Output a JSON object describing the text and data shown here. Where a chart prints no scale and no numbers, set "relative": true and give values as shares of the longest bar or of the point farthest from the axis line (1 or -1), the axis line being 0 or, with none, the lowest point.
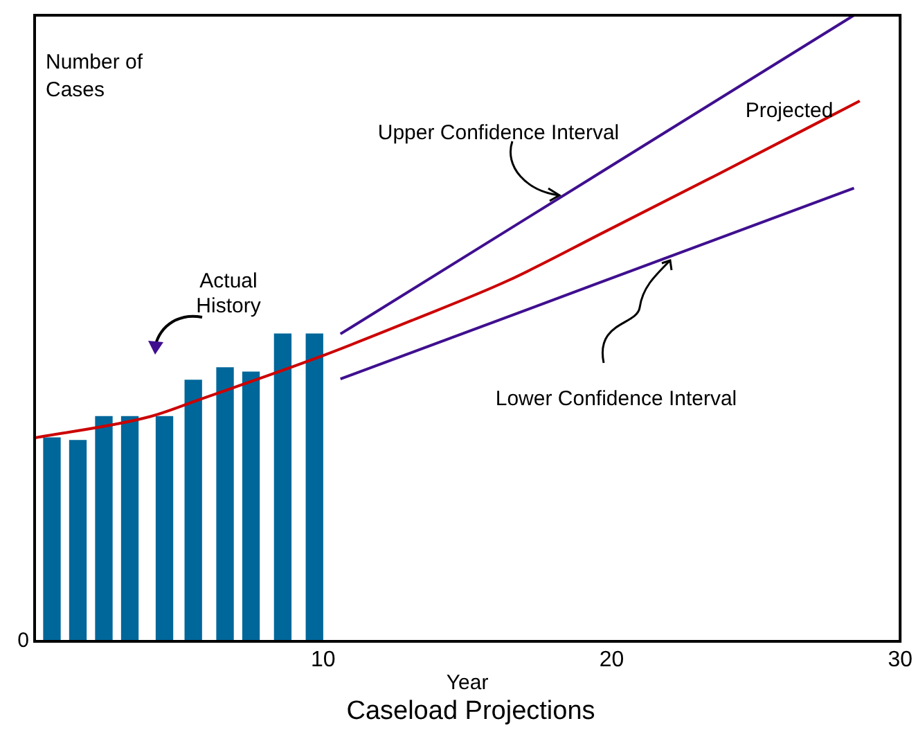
{
  "chart_data": {
    "type": "bar",
    "title": "Caseload Projections",
    "xlabel": "Year",
    "ylabel": "Number of Cases",
    "relative": true,
    "xlim": [
      0,
      30
    ],
    "xticks": [
      10,
      20,
      30
    ],
    "grid": false,
    "legend": false,
    "annotations": [
      "0"
    ],
    "series": [
      {
        "name": "Actual History",
        "color": "#00679a",
        "x": [
          0.6,
          1.5,
          2.4,
          3.3,
          4.5,
          5.5,
          6.6,
          7.5,
          8.6,
          9.7
        ],
        "values": [
          0.325,
          0.321,
          0.359,
          0.359,
          0.359,
          0.417,
          0.437,
          0.43,
          0.491,
          0.491
        ]
      },
      {
        "name": "Upper Confidence Interval",
        "type": "line",
        "color": "#3f0f8f",
        "x": [
          10.6,
          28.4
        ],
        "values": [
          0.491,
          1
        ]
      },
      {
        "name": "Projected",
        "type": "line",
        "color": "#cc0000",
        "x": [
          0,
          4.0,
          5.7,
          9.8,
          13.1,
          16.4,
          19.8,
          23.6,
          28.6
        ],
        "values": [
          0.325,
          0.359,
          0.386,
          0.453,
          0.513,
          0.576,
          0.655,
          0.744,
          0.863
        ]
      },
      {
        "name": "Lower Confidence Interval",
        "type": "line",
        "color": "#3f0f8f",
        "x": [
          10.6,
          28.4
        ],
        "values": [
          0.419,
          0.724
        ]
      }
    ]
  }
}
